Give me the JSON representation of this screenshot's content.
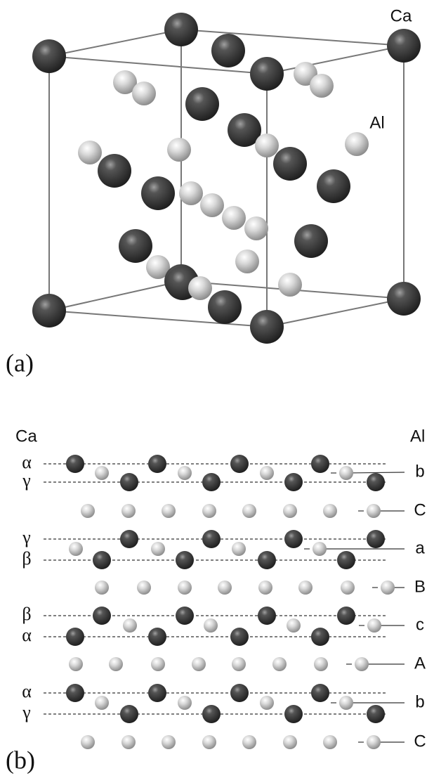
{
  "panel_a": {
    "label": "(a)",
    "atom_labels": [
      "Ca",
      "Al"
    ]
  },
  "panel_b": {
    "label": "(b)",
    "left_header": "Ca",
    "right_header": "Al",
    "left_labels": [
      "α",
      "γ",
      "γ",
      "β",
      "β",
      "α",
      "α",
      "γ"
    ],
    "right_labels": [
      "b",
      "C",
      "a",
      "B",
      "c",
      "A",
      "b",
      "C"
    ]
  }
}
